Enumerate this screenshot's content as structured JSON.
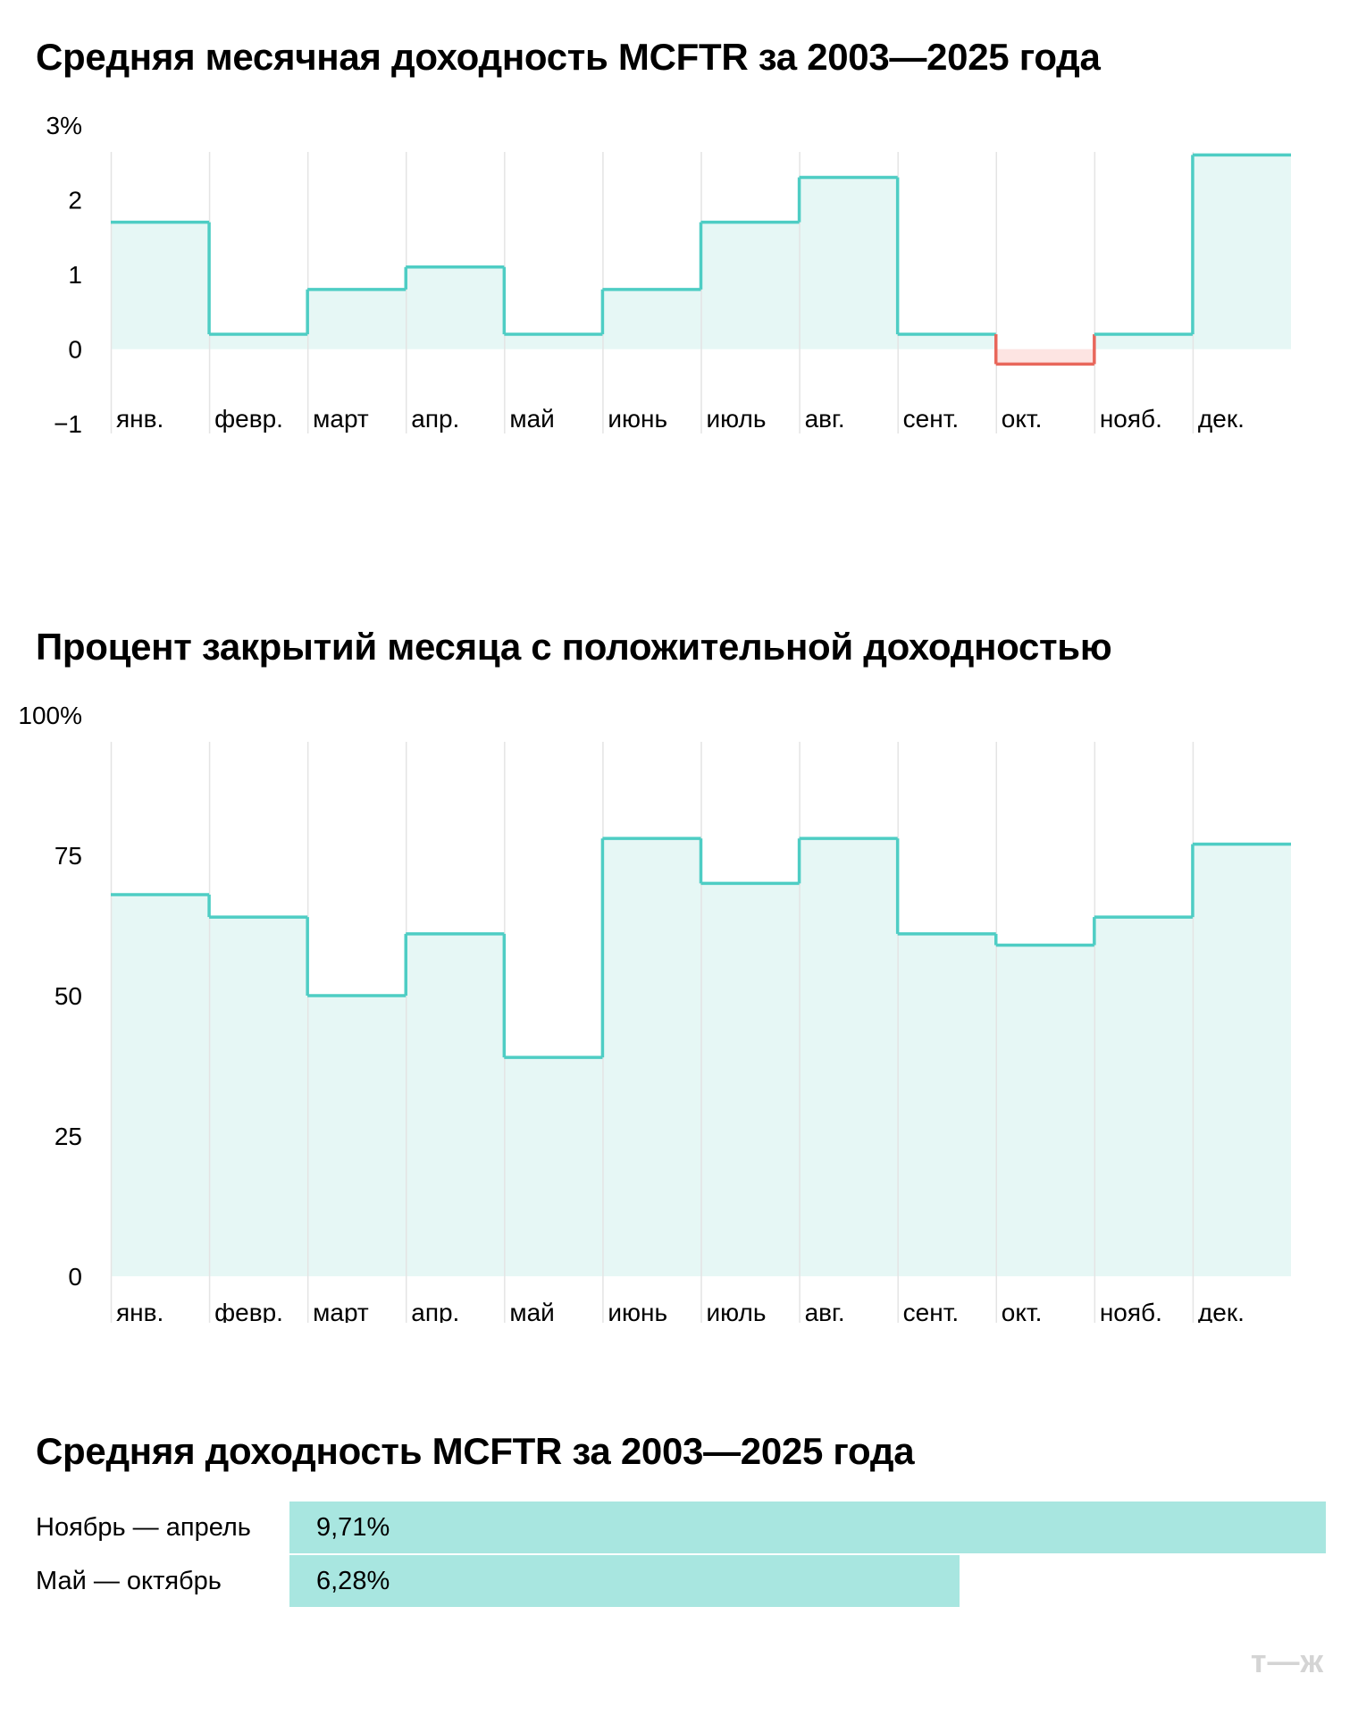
{
  "charts": [
    {
      "title": "Средняя месячная доходность MCFTR за 2003—2025 года",
      "chart_data": {
        "type": "line",
        "categories": [
          "янв.",
          "февр.",
          "март",
          "апр.",
          "май",
          "июнь",
          "июль",
          "авг.",
          "сент.",
          "окт.",
          "нояб.",
          "дек."
        ],
        "series": [
          {
            "values": [
              1.7,
              0.2,
              0.8,
              1.1,
              0.2,
              0.8,
              1.7,
              2.3,
              0.2,
              -0.2,
              0.2,
              2.6
            ]
          }
        ],
        "yticks": [
          "3%",
          "2",
          "1",
          "0",
          "−1"
        ],
        "ylim": [
          -1.5,
          3
        ],
        "colors": {
          "line": "#4ecdc4",
          "fill": "#e6f7f5",
          "negative_line": "#e8675b",
          "negative_fill": "#fde4e2"
        }
      }
    },
    {
      "title": "Процент закрытий месяца с положительной доходностью",
      "chart_data": {
        "type": "line",
        "categories": [
          "янв.",
          "февр.",
          "март",
          "апр.",
          "май",
          "июнь",
          "июль",
          "авг.",
          "сент.",
          "окт.",
          "нояб.",
          "дек."
        ],
        "series": [
          {
            "values": [
              68,
              64,
              50,
              61,
              39,
              78,
              70,
              78,
              61,
              59,
              64,
              77
            ]
          }
        ],
        "yticks": [
          "100%",
          "75",
          "50",
          "25",
          "0"
        ],
        "ylim": [
          0,
          100
        ],
        "colors": {
          "line": "#4ecdc4",
          "fill": "#e6f7f5"
        }
      }
    }
  ],
  "summary": {
    "title": "Средняя доходность MCFTR за 2003—2025 года",
    "chart_data": {
      "type": "bar",
      "categories": [
        "Ноябрь — апрель",
        "Май — октябрь"
      ],
      "values": [
        9.71,
        6.28
      ],
      "value_labels": [
        "9,71%",
        "6,28%"
      ],
      "color": "#a8e6e0"
    }
  },
  "logo": "т—ж"
}
